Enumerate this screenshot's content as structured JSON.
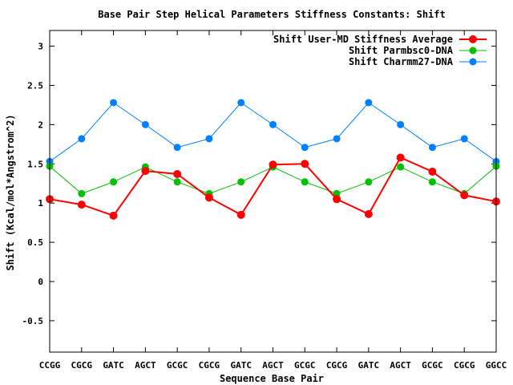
{
  "chart_data": {
    "type": "line",
    "title": "Base Pair Step Helical Parameters Stiffness Constants: Shift",
    "xlabel": "Sequence Base Pair",
    "ylabel": "Shift (Kcal/mol*Angstrom^2)",
    "categories": [
      "CCGG",
      "CGCG",
      "GATC",
      "AGCT",
      "GCGC",
      "CGCG",
      "GATC",
      "AGCT",
      "GCGC",
      "CGCG",
      "GATC",
      "AGCT",
      "GCGC",
      "CGCG",
      "GGCC"
    ],
    "ylim": [
      -0.9,
      3.2
    ],
    "yticks": [
      -0.5,
      0,
      0.5,
      1,
      1.5,
      2,
      2.5,
      3
    ],
    "ytick_labels": [
      "-0.5",
      "0",
      "0.5",
      "1",
      "1.5",
      "2",
      "2.5",
      "3"
    ],
    "grid": false,
    "legend_position": "top-right",
    "series": [
      {
        "name": "Shift User-MD Stiffness Average",
        "color": "#ff0000",
        "values": [
          1.05,
          0.98,
          0.84,
          1.41,
          1.37,
          1.07,
          0.85,
          1.49,
          1.5,
          1.05,
          0.86,
          1.58,
          1.4,
          1.1,
          1.02
        ]
      },
      {
        "name": "Shift Parmbsc0-DNA",
        "color": "#00c000",
        "values": [
          1.47,
          1.12,
          1.27,
          1.46,
          1.27,
          1.12,
          1.27,
          1.46,
          1.27,
          1.12,
          1.27,
          1.46,
          1.27,
          1.12,
          1.47
        ]
      },
      {
        "name": "Shift Charmm27-DNA",
        "color": "#0080ff",
        "values": [
          1.53,
          1.82,
          2.28,
          2.0,
          1.71,
          1.82,
          2.28,
          2.0,
          1.71,
          1.82,
          2.28,
          2.0,
          1.71,
          1.82,
          1.53
        ]
      }
    ]
  }
}
